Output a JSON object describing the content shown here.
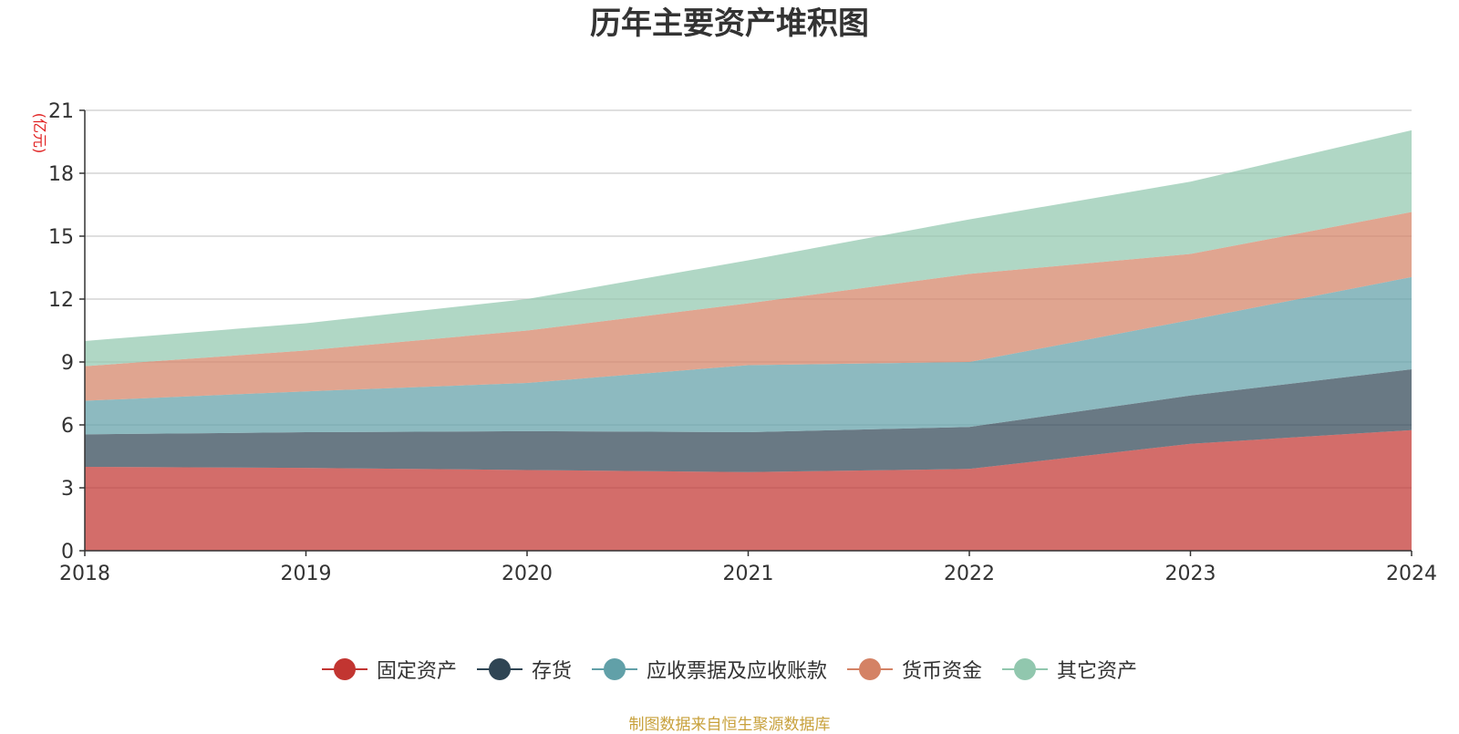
{
  "chart_data": {
    "type": "area",
    "stacked": true,
    "title": "历年主要资产堆积图",
    "ylabel": "(亿元)",
    "xlabel": "",
    "x": [
      "2018",
      "2019",
      "2020",
      "2021",
      "2022",
      "2023",
      "2024"
    ],
    "ylim": [
      0,
      21
    ],
    "yticks": [
      0,
      3,
      6,
      9,
      12,
      15,
      18,
      21
    ],
    "grid": true,
    "legend_position": "bottom",
    "series": [
      {
        "name": "固定资产",
        "color": "#c23531",
        "values": [
          4.0,
          3.95,
          3.85,
          3.75,
          3.9,
          5.1,
          5.75
        ]
      },
      {
        "name": "存货",
        "color": "#2f4554",
        "values": [
          1.55,
          1.7,
          1.85,
          1.9,
          2.0,
          2.3,
          2.9
        ]
      },
      {
        "name": "应收票据及应收账款",
        "color": "#61a0a8",
        "values": [
          1.6,
          1.95,
          2.3,
          3.2,
          3.1,
          3.6,
          4.4
        ]
      },
      {
        "name": "货币资金",
        "color": "#d48265",
        "values": [
          1.65,
          1.95,
          2.5,
          2.95,
          4.2,
          3.15,
          3.1
        ]
      },
      {
        "name": "其它资产",
        "color": "#91c7ae",
        "values": [
          1.2,
          1.3,
          1.5,
          2.05,
          2.6,
          3.45,
          3.9
        ]
      }
    ]
  },
  "source_note": "制图数据来自恒生聚源数据库"
}
